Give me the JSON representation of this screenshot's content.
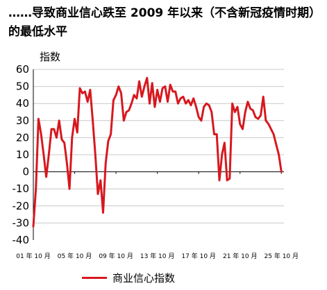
{
  "title": "……导致商业信心跌至 2009 年以来（不含新冠疫情时期）的最低水平",
  "chart_data": {
    "type": "line",
    "title": "……导致商业信心跌至 2009 年以来（不含新冠疫情时期）的最低水平",
    "ylabel": "指数",
    "xlabel": "",
    "ylim": [
      -40,
      60
    ],
    "yticks": [
      60,
      50,
      40,
      30,
      20,
      10,
      0,
      -10,
      -20,
      -30,
      -40
    ],
    "xlim": [
      2001.75,
      2026.0
    ],
    "xticks": [
      {
        "x": 2001.75,
        "label": "01 年 10 月"
      },
      {
        "x": 2005.75,
        "label": "05 年 10 月"
      },
      {
        "x": 2009.75,
        "label": "09 年 10 月"
      },
      {
        "x": 2013.75,
        "label": "13 年 10 月"
      },
      {
        "x": 2017.75,
        "label": "17 年 10 月"
      },
      {
        "x": 2021.75,
        "label": "21 年 10 月"
      },
      {
        "x": 2025.75,
        "label": "25 年 10 月"
      }
    ],
    "grid": true,
    "legend": "bottom",
    "series": [
      {
        "name": "商业信心指数",
        "color": "#d7181f",
        "x": [
          2001.75,
          2002.0,
          2002.25,
          2002.5,
          2002.75,
          2003.0,
          2003.25,
          2003.5,
          2003.75,
          2004.0,
          2004.25,
          2004.5,
          2004.75,
          2005.0,
          2005.25,
          2005.5,
          2005.75,
          2006.0,
          2006.25,
          2006.5,
          2006.75,
          2007.0,
          2007.25,
          2007.5,
          2007.75,
          2008.0,
          2008.25,
          2008.5,
          2008.75,
          2009.0,
          2009.25,
          2009.5,
          2009.75,
          2010.0,
          2010.25,
          2010.5,
          2010.75,
          2011.0,
          2011.25,
          2011.5,
          2011.75,
          2012.0,
          2012.25,
          2012.5,
          2012.75,
          2013.0,
          2013.25,
          2013.5,
          2013.75,
          2014.0,
          2014.25,
          2014.5,
          2014.75,
          2015.0,
          2015.25,
          2015.5,
          2015.75,
          2016.0,
          2016.25,
          2016.5,
          2016.75,
          2017.0,
          2017.25,
          2017.5,
          2017.75,
          2018.0,
          2018.25,
          2018.5,
          2018.75,
          2019.0,
          2019.25,
          2019.5,
          2019.75,
          2020.0,
          2020.25,
          2020.5,
          2020.75,
          2021.0,
          2021.25,
          2021.5,
          2021.75,
          2022.0,
          2022.25,
          2022.5,
          2022.75,
          2023.0,
          2023.25,
          2023.5,
          2023.75,
          2024.0,
          2024.25,
          2024.5,
          2024.75,
          2025.0,
          2025.25,
          2025.5,
          2025.75
        ],
        "values": [
          -32,
          -10,
          31,
          22,
          10,
          -3,
          10,
          25,
          25,
          20,
          30,
          19,
          17,
          5,
          -10,
          20,
          31,
          23,
          49,
          46,
          47,
          41,
          48,
          30,
          10,
          -13,
          -5,
          -24,
          5,
          18,
          22,
          42,
          45,
          50,
          46,
          30,
          35,
          36,
          40,
          45,
          43,
          53,
          44,
          50,
          55,
          40,
          52,
          38,
          48,
          41,
          49,
          50,
          41,
          51,
          47,
          47,
          40,
          43,
          44,
          40,
          42,
          39,
          43,
          38,
          32,
          30,
          38,
          40,
          39,
          35,
          22,
          22,
          -5,
          10,
          17,
          -5,
          -4,
          40,
          35,
          38,
          28,
          25,
          35,
          41,
          37,
          36,
          32,
          31,
          33,
          44,
          30,
          28,
          25,
          22,
          16,
          10,
          0
        ]
      }
    ]
  }
}
